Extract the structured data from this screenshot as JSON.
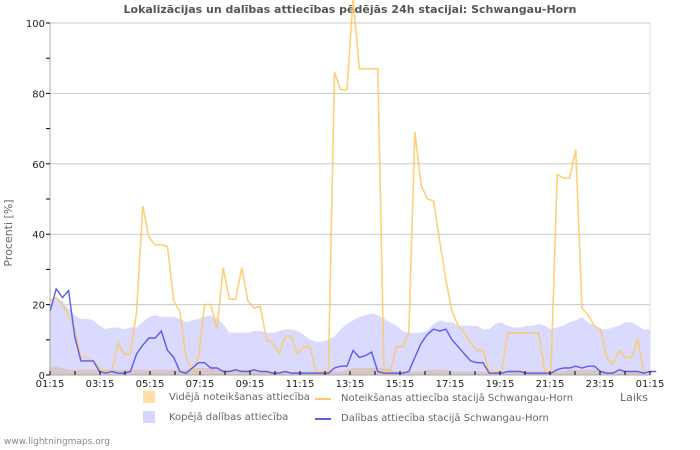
{
  "title": "Lokalizācijas un dalības attiecības pēdējās 24h stacijai: Schwangau-Horn",
  "footer": "www.lightningmaps.org",
  "colors": {
    "avg_detection_fill": "#ffdfa6",
    "station_detection_line": "#ffc860",
    "total_participation_fill": "#d6d6ff",
    "station_participation_line": "#5a5aee",
    "grid": "#c8c8c8",
    "axis": "#aaaaaa"
  },
  "legend": [
    {
      "label": "Vidējā noteikšanas attiecība",
      "type": "box",
      "color": "#ffdfa6"
    },
    {
      "label": "Noteikšanas attiecība stacijā Schwangau-Horn",
      "type": "line",
      "color": "#ffc860"
    },
    {
      "label": "Kopējā dalības attiecība",
      "type": "box",
      "color": "#d6d6ff"
    },
    {
      "label": "Dalības attiecība stacijā Schwangau-Horn",
      "type": "line",
      "color": "#5a5aee"
    }
  ],
  "chart_data": {
    "type": "line",
    "title": "Lokalizācijas un dalības attiecības pēdējās 24h stacijai: Schwangau-Horn",
    "xlabel": "Laiks",
    "ylabel": "Procenti   [%]",
    "ylim": [
      0,
      100
    ],
    "yticks": [
      0,
      20,
      40,
      60,
      80,
      100
    ],
    "xtick_labels": [
      "01:15",
      "03:15",
      "05:15",
      "07:15",
      "09:15",
      "11:15",
      "13:15",
      "15:15",
      "17:15",
      "19:15",
      "21:15",
      "23:15",
      "01:15"
    ],
    "grid": true,
    "step_minutes": 15,
    "series": [
      {
        "name": "Kopējā dalības attiecība",
        "style": "area",
        "values": [
          20,
          22,
          21,
          19,
          17,
          16,
          16,
          15.5,
          14,
          13,
          13.5,
          13.5,
          13,
          13.5,
          13.5,
          15,
          16.5,
          17,
          16.5,
          16.5,
          16.5,
          16,
          15,
          15.5,
          16,
          16.5,
          17,
          16,
          14.5,
          12,
          12,
          12,
          12,
          12.5,
          12.5,
          12,
          12,
          12.5,
          13,
          13,
          12.5,
          11.5,
          10,
          9.5,
          9.5,
          10,
          11,
          13,
          14.5,
          15.5,
          16.5,
          17,
          17.5,
          17,
          16,
          15,
          14,
          12.5,
          12,
          12,
          12,
          12.5,
          14.5,
          15.5,
          15,
          15,
          14,
          14,
          14,
          14,
          13,
          13,
          14.5,
          15,
          14,
          13.5,
          13.5,
          14,
          14,
          14.5,
          14,
          13,
          13.5,
          14,
          15,
          15.5,
          16.5,
          15,
          14,
          13,
          13,
          13.5,
          14,
          15,
          15,
          14,
          13,
          13
        ]
      },
      {
        "name": "Vidējā noteikšanas attiecība",
        "style": "area",
        "values": [
          2,
          2.5,
          2,
          1.5,
          1.5,
          1.5,
          1.5,
          1.5,
          1.5,
          1.5,
          1.5,
          1.5,
          1.5,
          1.5,
          1.5,
          1.5,
          1.5,
          1.5,
          1.5,
          1.5,
          1.5,
          1.5,
          1.5,
          1.5,
          2,
          2,
          2,
          1.5,
          1.5,
          1.5,
          1.5,
          1.5,
          1.5,
          1.5,
          1,
          1,
          1,
          1,
          1,
          1,
          1,
          1,
          1,
          1,
          1,
          1,
          1,
          1,
          1.5,
          2,
          2,
          2,
          2,
          2,
          2,
          1.5,
          1,
          1,
          1,
          1,
          1,
          1.5,
          1.5,
          1.5,
          1.5,
          1,
          1,
          1,
          1,
          1,
          1,
          1,
          1,
          1,
          1,
          1,
          1,
          1,
          1,
          1,
          1,
          1,
          1,
          1,
          1.5,
          1.5,
          1.5,
          1.5,
          1.5,
          1.5,
          1,
          1,
          1,
          1,
          1,
          1,
          1
        ]
      },
      {
        "name": "Noteikšanas attiecība stacijā Schwangau-Horn",
        "style": "line",
        "values": [
          21,
          22,
          20,
          17,
          13,
          5,
          5,
          4,
          2,
          1,
          1,
          9,
          6,
          6,
          18,
          48,
          39,
          37,
          37,
          36.5,
          21,
          18,
          5,
          1,
          5,
          20,
          20,
          13,
          30.5,
          21.5,
          21.5,
          30.5,
          21,
          19,
          19.5,
          10,
          9,
          6,
          11,
          11,
          6,
          8,
          8,
          1,
          1,
          1,
          86,
          81,
          81,
          107,
          87,
          87,
          87,
          87,
          1,
          1,
          8,
          8,
          12,
          69,
          54,
          50,
          49.5,
          38,
          27,
          18,
          14,
          12,
          9,
          7,
          7,
          1,
          1,
          1,
          12,
          12,
          12,
          12,
          12,
          12,
          1,
          1,
          57,
          56,
          56,
          64,
          19,
          17,
          14,
          13,
          5,
          3,
          7,
          5,
          5,
          10,
          1
        ]
      },
      {
        "name": "Dalības attiecība stacijā Schwangau-Horn",
        "style": "line",
        "values": [
          18,
          24.5,
          22,
          24,
          11,
          4,
          4,
          4,
          1,
          0.5,
          1,
          0.5,
          0.5,
          1,
          6,
          8.5,
          10.5,
          10.5,
          12.5,
          7,
          5,
          1,
          0.5,
          2,
          3.5,
          3.5,
          2,
          2,
          1,
          1,
          1.5,
          1,
          1,
          1.5,
          1,
          1,
          0.5,
          0.5,
          1,
          0.5,
          0.5,
          0.5,
          0.5,
          0.5,
          0.5,
          0.5,
          2,
          2.5,
          2.5,
          7,
          5,
          5.5,
          6.5,
          1,
          0.5,
          0.5,
          0.5,
          0.5,
          1,
          5,
          9,
          11.5,
          13,
          12.5,
          13,
          10,
          8,
          6,
          4,
          3.5,
          3.5,
          0.5,
          0.5,
          0.5,
          1,
          1,
          1,
          0.5,
          0.5,
          0.5,
          0.5,
          0.5,
          1.5,
          2,
          2,
          2.5,
          2,
          2.5,
          2.5,
          1,
          0.5,
          0.5,
          1.5,
          1,
          1,
          1,
          0.5,
          1,
          1
        ]
      }
    ]
  }
}
